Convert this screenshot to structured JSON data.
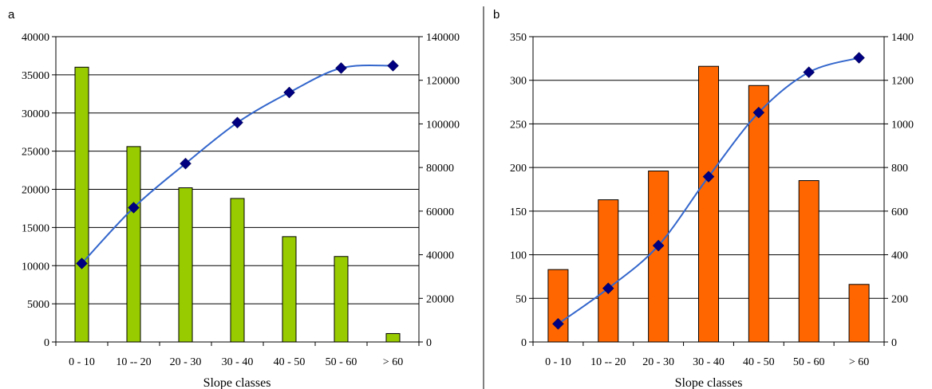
{
  "chart_data": [
    {
      "type": "bar",
      "panel_label": "a",
      "categories": [
        "0 - 10",
        "10 -- 20",
        "20 - 30",
        "30 - 40",
        "40 - 50",
        "50 - 60",
        "> 60"
      ],
      "xlabel": "Slope classes",
      "ylim": [
        0,
        40000
      ],
      "yticks": [
        0,
        5000,
        10000,
        15000,
        20000,
        25000,
        30000,
        35000,
        40000
      ],
      "y2lim": [
        0,
        140000
      ],
      "y2ticks": [
        0,
        20000,
        40000,
        60000,
        80000,
        100000,
        120000,
        140000
      ],
      "grid": true,
      "series": [
        {
          "type": "bar",
          "axis": "left",
          "color": "#99CC00",
          "values": [
            36000,
            25600,
            20200,
            18800,
            13800,
            11200,
            1100
          ]
        },
        {
          "type": "line",
          "axis": "right",
          "color": "#3366CC",
          "marker": "diamond",
          "marker_color": "#000080",
          "values": [
            36000,
            61600,
            81800,
            100600,
            114400,
            125600,
            126700
          ]
        }
      ]
    },
    {
      "type": "bar",
      "panel_label": "b",
      "categories": [
        "0 - 10",
        "10 -- 20",
        "20 - 30",
        "30 - 40",
        "40 - 50",
        "50 - 60",
        "> 60"
      ],
      "xlabel": "Slope classes",
      "ylim": [
        0,
        350
      ],
      "yticks": [
        0,
        50,
        100,
        150,
        200,
        250,
        300,
        350
      ],
      "y2lim": [
        0,
        1400
      ],
      "y2ticks": [
        0,
        200,
        400,
        600,
        800,
        1000,
        1200,
        1400
      ],
      "grid": true,
      "series": [
        {
          "type": "bar",
          "axis": "left",
          "color": "#FF6600",
          "values": [
            83,
            163,
            196,
            316,
            294,
            185,
            66
          ]
        },
        {
          "type": "line",
          "axis": "right",
          "color": "#3366CC",
          "marker": "diamond",
          "marker_color": "#000080",
          "values": [
            83,
            246,
            442,
            758,
            1052,
            1237,
            1303
          ]
        }
      ]
    }
  ]
}
